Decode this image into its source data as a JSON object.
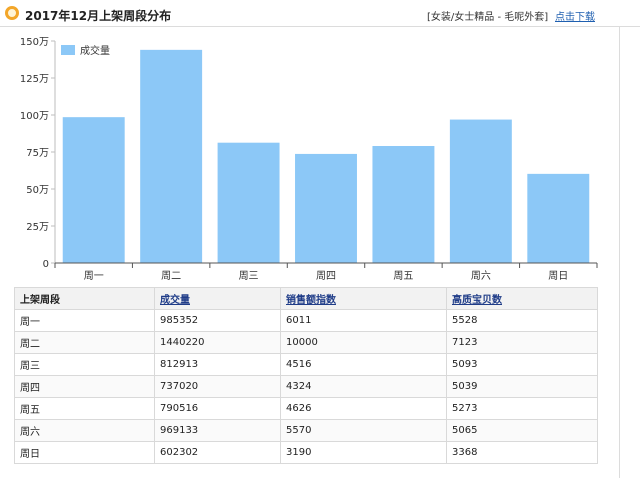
{
  "header": {
    "title": "2017年12月上架周段分布",
    "category": "[女装/女士精品 - 毛呢外套]",
    "download_label": "点击下载",
    "icon": "circle-bullet-icon",
    "accent_color": "#f3a629"
  },
  "chart_data": {
    "type": "bar",
    "categories": [
      "周一",
      "周二",
      "周三",
      "周四",
      "周五",
      "周六",
      "周日"
    ],
    "series": [
      {
        "name": "成交量",
        "values": [
          985352,
          1440220,
          812913,
          737020,
          790516,
          969133,
          602302
        ],
        "color": "#8cc8f7"
      }
    ],
    "ylim": [
      0,
      1500000
    ],
    "yticks": [
      0,
      250000,
      500000,
      750000,
      1000000,
      1250000,
      1500000
    ],
    "ytick_labels": [
      "0",
      "25万",
      "50万",
      "75万",
      "100万",
      "125万",
      "150万"
    ],
    "legend": "top-left",
    "grid": false
  },
  "table": {
    "headers": [
      "上架周段",
      "成交量",
      "销售额指数",
      "高质宝贝数"
    ],
    "rows": [
      [
        "周一",
        "985352",
        "6011",
        "5528"
      ],
      [
        "周二",
        "1440220",
        "10000",
        "7123"
      ],
      [
        "周三",
        "812913",
        "4516",
        "5093"
      ],
      [
        "周四",
        "737020",
        "4324",
        "5039"
      ],
      [
        "周五",
        "790516",
        "4626",
        "5273"
      ],
      [
        "周六",
        "969133",
        "5570",
        "5065"
      ],
      [
        "周日",
        "602302",
        "3190",
        "3368"
      ]
    ]
  }
}
